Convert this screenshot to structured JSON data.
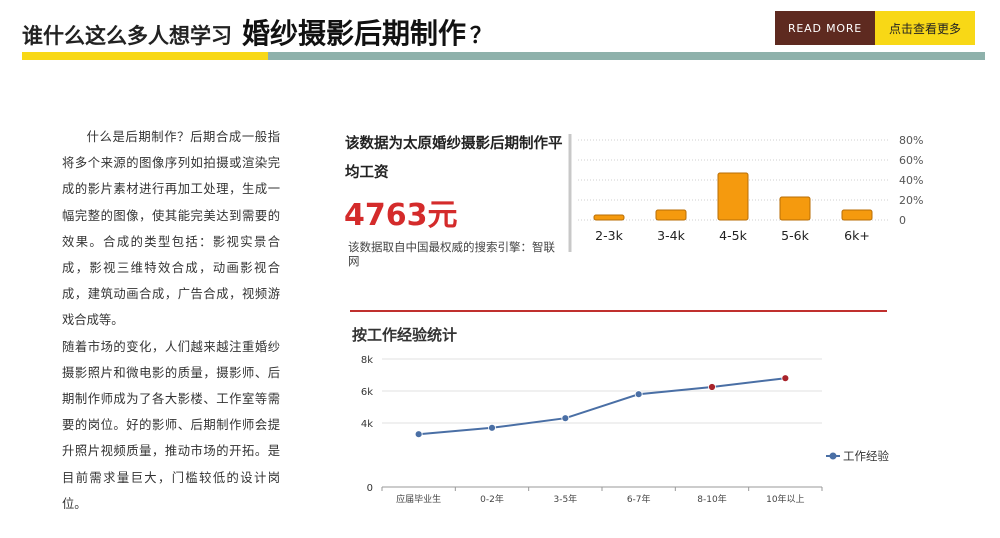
{
  "header": {
    "title_prefix": "谁什么这么多人想学习",
    "title_main": "婚纱摄影后期制作",
    "title_suffix": "？",
    "readmore_label": "READ MORE",
    "more_label": "点击查看更多",
    "colors": {
      "yellow": "#f8d816",
      "teal": "#8eb1ab",
      "brown": "#5e2a20"
    }
  },
  "description": {
    "para1": "什么是后期制作？后期合成一般指将多个来源的图像序列如拍摄或渲染完成的影片素材进行再加工处理，生成一幅完整的图像，使其能完美达到需要的效果。合成的类型包括：影视实景合成，影视三维特效合成，动画影视合成，建筑动画合成，广告合成，视频游戏合成等。",
    "para2": "随着市场的变化，人们越来越注重婚纱摄影照片和微电影的质量，摄影师、后期制作师成为了各大影楼、工作室等需要的岗位。好的影师、后期制作师会提升照片视频质量，推动市场的开拓。是目前需求量巨大，门槛较低的设计岗位。"
  },
  "salary": {
    "title": "该数据为太原婚纱摄影后期制作平均工资",
    "value": "4763元",
    "source": "该数据取自中国最权威的搜索引擎：智联网",
    "color": "#d42b2b"
  },
  "chart_data": [
    {
      "type": "bar",
      "categories": [
        "2-3k",
        "3-4k",
        "4-5k",
        "5-6k",
        "6k+"
      ],
      "values": [
        5,
        10,
        47,
        23,
        10
      ],
      "ylim": [
        0,
        80
      ],
      "yticks": [
        "0",
        "20%",
        "40%",
        "60%",
        "80%"
      ],
      "y_axis_side": "right",
      "grid": true,
      "bar_color": "#f59a0e"
    },
    {
      "type": "line",
      "title": "按工作经验统计",
      "categories": [
        "应届毕业生",
        "0-2年",
        "3-5年",
        "6-7年",
        "8-10年",
        "10年以上"
      ],
      "series": [
        {
          "name": "工作经验",
          "values": [
            3300,
            3700,
            4300,
            5800,
            6250,
            6800
          ]
        }
      ],
      "ylim": [
        0,
        8000
      ],
      "yticks": [
        "0",
        "4k",
        "6k",
        "8k"
      ],
      "grid": true,
      "legend": "right",
      "line_color": "#4a6fa5",
      "highlight_color": "#a8232a"
    }
  ]
}
